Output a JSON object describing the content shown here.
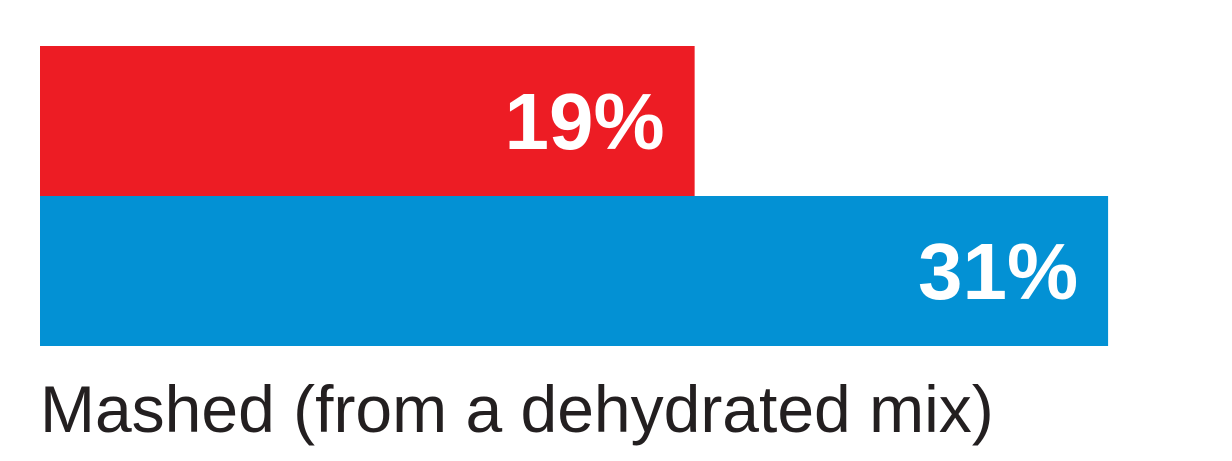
{
  "chart_data": {
    "type": "bar",
    "orientation": "horizontal",
    "categories": [
      "Mashed (from a dehydrated mix)"
    ],
    "series": [
      {
        "values": [
          19
        ],
        "labels": [
          "19%"
        ],
        "color": "#ed1c24"
      },
      {
        "values": [
          31
        ],
        "labels": [
          "31%"
        ],
        "color": "#0391d4"
      }
    ],
    "xlim": [
      0,
      33
    ],
    "unit": "%",
    "title": "",
    "xlabel": "",
    "ylabel": "",
    "grid": false,
    "legend": "none"
  }
}
